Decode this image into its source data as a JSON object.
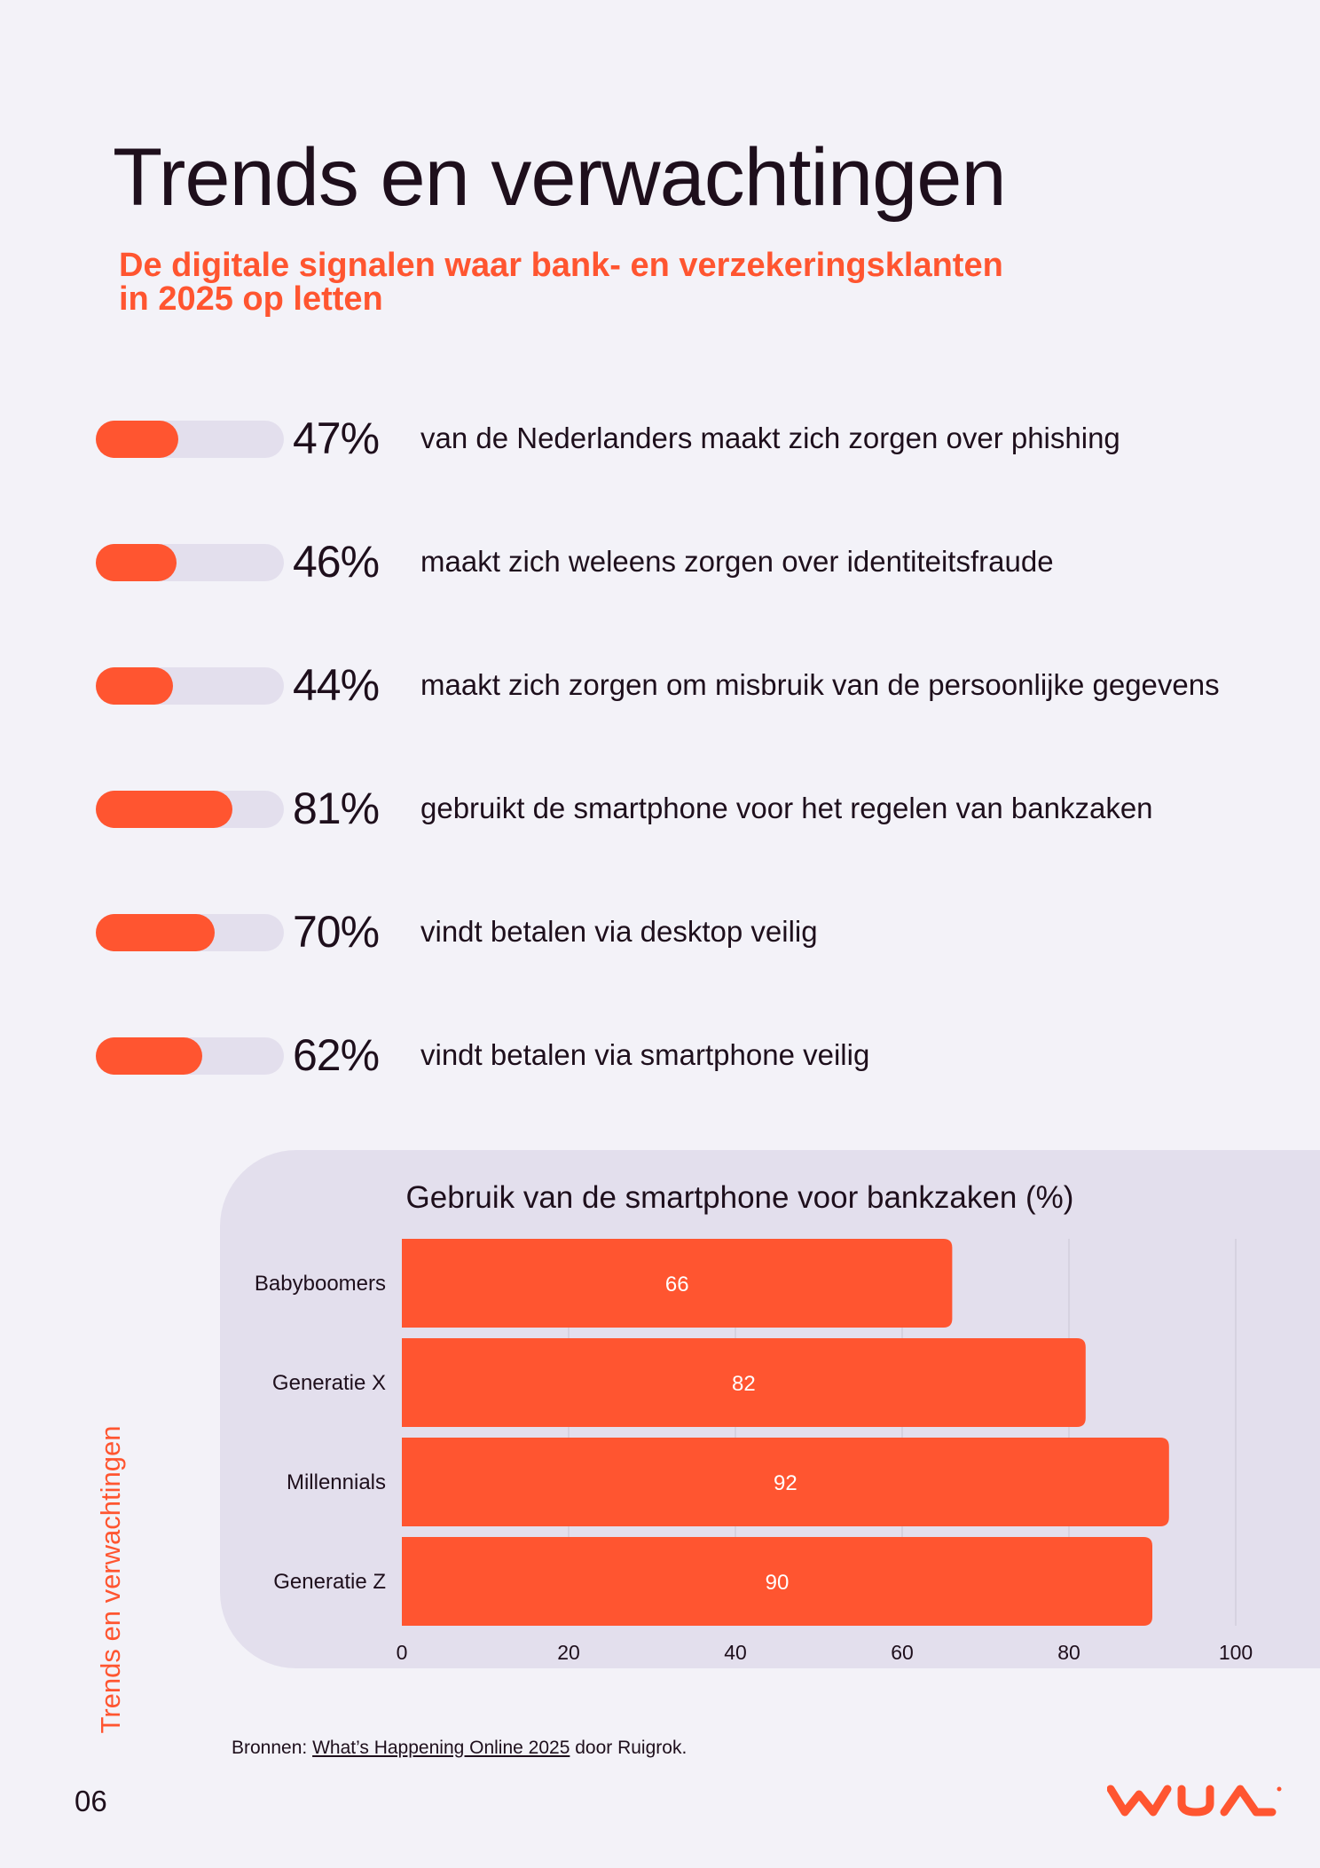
{
  "header": {
    "title": "Trends en verwachtingen",
    "subtitle_line1": "De digitale signalen waar bank- en verzekeringsklanten",
    "subtitle_line2": "in 2025 op letten"
  },
  "stats": [
    {
      "value": 0.47,
      "pct": "47%",
      "text": "van de Nederlanders maakt zich zorgen over phishing"
    },
    {
      "value": 0.46,
      "pct": "46%",
      "text": "maakt zich weleens zorgen over identiteitsfraude"
    },
    {
      "value": 0.44,
      "pct": "44%",
      "text": "maakt zich zorgen om misbruik van de persoonlijke gegevens"
    },
    {
      "value": 0.81,
      "pct": "81%",
      "text": "gebruikt de smartphone voor het regelen van bankzaken"
    },
    {
      "value": 0.7,
      "pct": "70%",
      "text": "vindt betalen via desktop veilig"
    },
    {
      "value": 0.62,
      "pct": "62%",
      "text": "vindt betalen via smartphone veilig"
    }
  ],
  "chart_data": {
    "type": "bar",
    "orientation": "horizontal",
    "title": "Gebruik van de smartphone voor bankzaken (%)",
    "categories": [
      "Babyboomers",
      "Generatie X",
      "Millennials",
      "Generatie Z"
    ],
    "values": [
      66,
      82,
      92,
      90
    ],
    "xlim": [
      0,
      100
    ],
    "xticks": [
      0,
      20,
      40,
      60,
      80,
      100
    ],
    "grid": true,
    "bar_color": "#ff5530"
  },
  "side_label": "Trends en verwachtingen",
  "footer": {
    "source_prefix": "Bronnen: ",
    "source_link": "What’s Happening Online 2025",
    "source_suffix": " door Ruigrok.",
    "page_number": "06"
  },
  "colors": {
    "accent": "#ff5530",
    "track": "#e3dfed",
    "background": "#f3f2f8",
    "text": "#1e0f1c"
  },
  "logo": {
    "icon": "wua-logo-icon",
    "text": "WUA"
  }
}
